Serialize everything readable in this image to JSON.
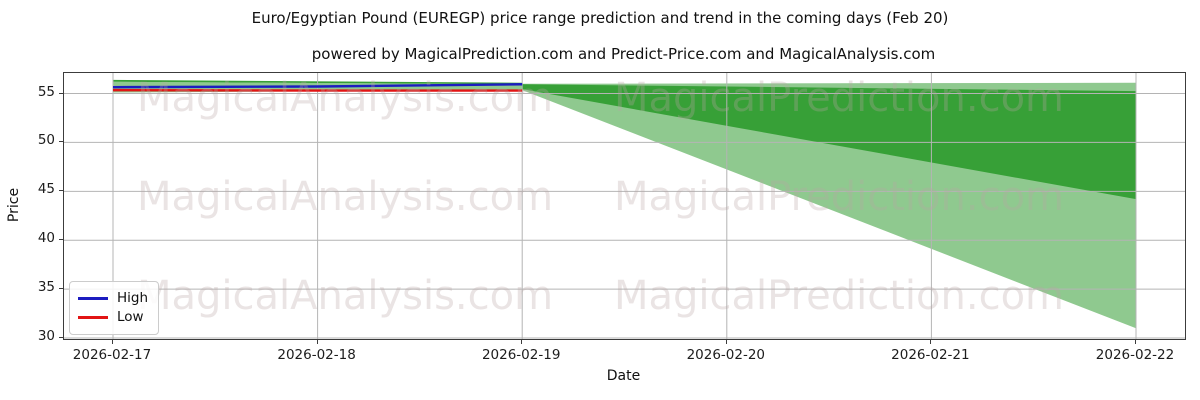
{
  "figure": {
    "title": "Euro/Egyptian Pound (EUREGP) price range prediction and trend in the coming days (Feb 20)",
    "subtitle": "powered by MagicalPrediction.com and Predict-Price.com and MagicalAnalysis.com"
  },
  "chart_data": {
    "type": "line",
    "title": "Euro/Egyptian Pound (EUREGP) price range prediction and trend in the coming days (Feb 20)",
    "subtitle": "powered by MagicalPrediction.com and Predict-Price.com and MagicalAnalysis.com",
    "xlabel": "Date",
    "ylabel": "Price",
    "x_tick_labels": [
      "2026-02-17",
      "2026-02-18",
      "2026-02-19",
      "2026-02-20",
      "2026-02-21",
      "2026-02-22"
    ],
    "y_tick_values": [
      30,
      35,
      40,
      45,
      50,
      55
    ],
    "ylim": [
      29.9,
      57.1
    ],
    "grid": true,
    "grid_color": "#b4b4b4",
    "spine_color": "#3c3c3c",
    "series": [
      {
        "name": "High",
        "color": "#1c1cc0",
        "x": [
          0,
          1,
          2
        ],
        "values": [
          55.65,
          55.72,
          55.95
        ]
      },
      {
        "name": "Low",
        "color": "#e21414",
        "x": [
          0,
          1,
          2
        ],
        "values": [
          55.35,
          55.3,
          55.3
        ]
      }
    ],
    "bands": [
      {
        "name": "history-outer-range",
        "color": "#8fc98f",
        "x": [
          0,
          2
        ],
        "top": [
          56.2,
          55.95
        ],
        "bottom": [
          55.1,
          55.35
        ]
      },
      {
        "name": "history-inner-range",
        "color": "#37a037",
        "x": [
          0,
          2
        ],
        "top": [
          56.4,
          56.1
        ],
        "bottom": [
          56.2,
          55.95
        ]
      },
      {
        "name": "forecast-outer-range",
        "color": "#8fc98f",
        "x": [
          2,
          5
        ],
        "top": [
          56.0,
          56.1
        ],
        "bottom": [
          55.35,
          31.0
        ]
      },
      {
        "name": "forecast-inner-range",
        "color": "#37a037",
        "x": [
          2,
          5
        ],
        "top": [
          55.95,
          55.25
        ],
        "bottom": [
          55.45,
          44.2
        ]
      }
    ],
    "legend": {
      "position": "lower left",
      "items": [
        {
          "label": "High",
          "color": "#1c1cc0"
        },
        {
          "label": "Low",
          "color": "#e21414"
        }
      ]
    },
    "watermarks": {
      "left_text": "MagicalAnalysis.com",
      "right_text": "MagicalPrediction.com",
      "rows": 3,
      "color": "rgba(186,166,166,0.30)"
    }
  }
}
